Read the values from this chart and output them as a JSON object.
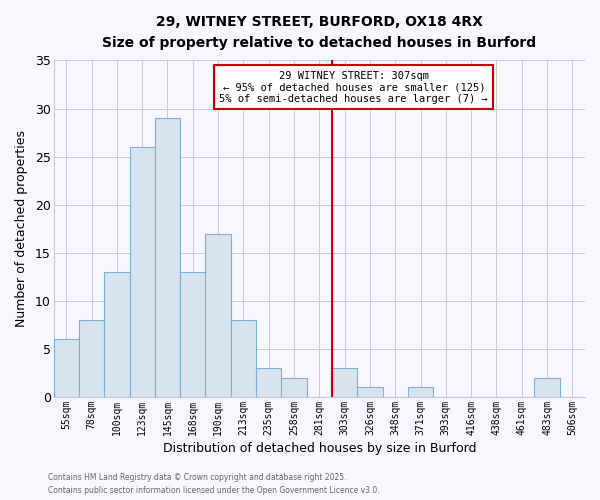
{
  "title": "29, WITNEY STREET, BURFORD, OX18 4RX",
  "subtitle": "Size of property relative to detached houses in Burford",
  "xlabel": "Distribution of detached houses by size in Burford",
  "ylabel": "Number of detached properties",
  "bar_labels": [
    "55sqm",
    "78sqm",
    "100sqm",
    "123sqm",
    "145sqm",
    "168sqm",
    "190sqm",
    "213sqm",
    "235sqm",
    "258sqm",
    "281sqm",
    "303sqm",
    "326sqm",
    "348sqm",
    "371sqm",
    "393sqm",
    "416sqm",
    "438sqm",
    "461sqm",
    "483sqm",
    "506sqm"
  ],
  "bar_heights": [
    6,
    8,
    13,
    26,
    29,
    13,
    17,
    8,
    3,
    2,
    0,
    3,
    1,
    0,
    1,
    0,
    0,
    0,
    0,
    2,
    0
  ],
  "bar_color": "#d6e4f0",
  "bar_edge_color": "#7bafd4",
  "vline_x_index": 11,
  "vline_color": "#cc0000",
  "annotation_line1": "29 WITNEY STREET: 307sqm",
  "annotation_line2": "← 95% of detached houses are smaller (125)",
  "annotation_line3": "5% of semi-detached houses are larger (7) →",
  "annotation_box_color": "#ffffff",
  "annotation_box_edge": "#cc0000",
  "ylim": [
    0,
    35
  ],
  "yticks": [
    0,
    5,
    10,
    15,
    20,
    25,
    30,
    35
  ],
  "footer_line1": "Contains HM Land Registry data © Crown copyright and database right 2025.",
  "footer_line2": "Contains public sector information licensed under the Open Government Licence v3.0.",
  "bg_color": "#f7f7ff",
  "grid_color": "#c8c8d8"
}
